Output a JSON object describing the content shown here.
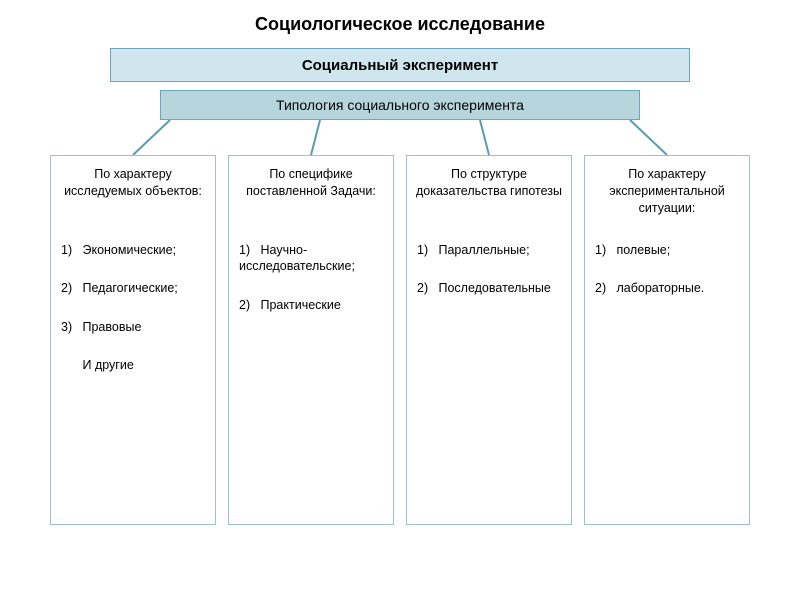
{
  "title": "Социологическое исследование",
  "box1": {
    "label": "Социальный эксперимент",
    "bg": "#cfe6ee",
    "border": "#6ca6bd"
  },
  "box2": {
    "label": "Типология социального эксперимента",
    "bg": "#b7d5dd",
    "border": "#6ca6bd"
  },
  "column_border": "#9ec2cd",
  "connector_color": "#5a9bb3",
  "columns": [
    {
      "heading": "По характеру исследуемых объектов:",
      "items": [
        {
          "n": "1)",
          "text": "Экономические;"
        },
        {
          "n": "2)",
          "text": "Педагогические;"
        },
        {
          "n": "3)",
          "text": "Правовые"
        },
        {
          "n": "",
          "text": "И другие"
        }
      ]
    },
    {
      "heading": "По специфике поставленной Задачи:",
      "items": [
        {
          "n": "1)",
          "text": "Научно-исследовательские;"
        },
        {
          "n": "2)",
          "text": "Практические"
        }
      ]
    },
    {
      "heading": "По структуре доказательства гипотезы",
      "items": [
        {
          "n": "1)",
          "text": "Параллельные;"
        },
        {
          "n": "2)",
          "text": "Последовательные"
        }
      ]
    },
    {
      "heading": "По характеру экспериментальной ситуации:",
      "items": [
        {
          "n": "1)",
          "text": "полевые;"
        },
        {
          "n": "2)",
          "text": "лабораторные."
        }
      ]
    }
  ]
}
